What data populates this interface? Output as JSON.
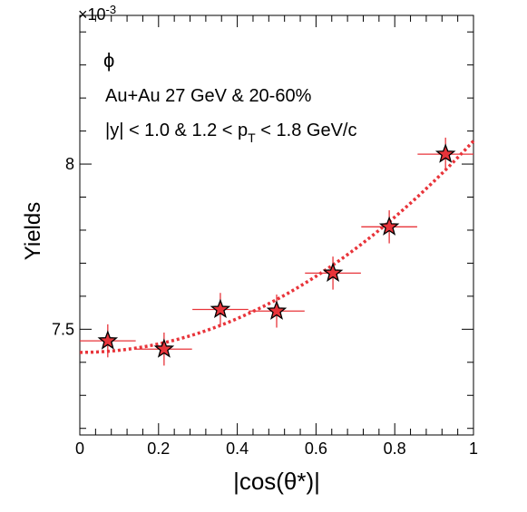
{
  "chart_data": {
    "type": "scatter",
    "title": "",
    "xlabel": "|cos(θ*)|",
    "ylabel": "Yields",
    "y_multiplier_label": "×10",
    "y_multiplier_exp": "-3",
    "xlim": [
      0,
      1
    ],
    "ylim": [
      7.18,
      8.45
    ],
    "x_ticks": [
      0,
      0.2,
      0.4,
      0.6,
      0.8,
      1
    ],
    "x_tick_labels": [
      "0",
      "0.2",
      "0.4",
      "0.6",
      "0.8",
      "1"
    ],
    "y_ticks": [
      7.5,
      8
    ],
    "y_tick_labels": [
      "7.5",
      "8"
    ],
    "annotations": {
      "particle": "ϕ",
      "system": "Au+Au 27 GeV & 20-60%",
      "cuts_prefix": "|y| < 1.0 & 1.2 < p",
      "cuts_sub": "T",
      "cuts_suffix": " < 1.8 GeV/c"
    },
    "series": [
      {
        "x": [
          0.071,
          0.214,
          0.357,
          0.5,
          0.643,
          0.786,
          0.929
        ],
        "y": [
          7.465,
          7.44,
          7.56,
          7.555,
          7.67,
          7.81,
          8.03
        ],
        "x_err": [
          0.071,
          0.071,
          0.071,
          0.071,
          0.071,
          0.071,
          0.071
        ],
        "y_err": [
          0.05,
          0.05,
          0.05,
          0.05,
          0.05,
          0.05,
          0.05
        ],
        "marker_color": "#e8343a",
        "marker": "star"
      }
    ],
    "fit": {
      "form": "a + b*x^2",
      "a": 7.43,
      "b": 0.64,
      "color": "#e8343a",
      "style": "dotted"
    }
  }
}
